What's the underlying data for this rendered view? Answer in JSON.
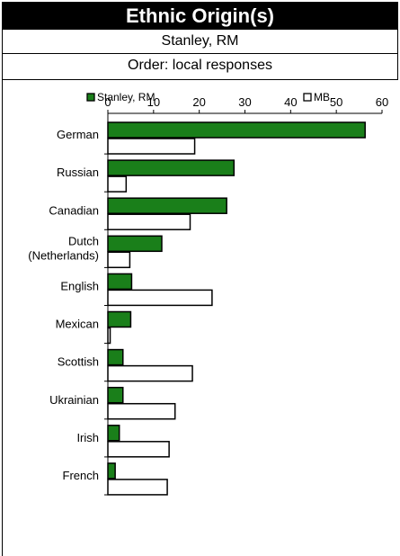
{
  "chart_data": {
    "type": "bar",
    "orientation": "horizontal",
    "title": "Ethnic Origin(s)",
    "subtitle_lines": [
      "Stanley, RM",
      "Order: local responses"
    ],
    "categories": [
      "German",
      "Russian",
      "Canadian",
      "Dutch\n(Netherlands)",
      "English",
      "Mexican",
      "Scottish",
      "Ukrainian",
      "Irish",
      "French"
    ],
    "series": [
      {
        "name": "Stanley, RM",
        "color": "#1a7f1a",
        "values": [
          56.3,
          27.6,
          26.0,
          11.8,
          5.2,
          5.0,
          3.3,
          3.3,
          2.5,
          1.6
        ]
      },
      {
        "name": "MB",
        "color": "#ffffff",
        "values": [
          19.0,
          4.0,
          18.0,
          4.8,
          22.8,
          0.5,
          18.5,
          14.7,
          13.4,
          13.0
        ]
      }
    ],
    "xlim": [
      0,
      60
    ],
    "xticks": [
      0,
      10,
      20,
      30,
      40,
      50,
      60
    ],
    "grid": false,
    "legend_position": "top"
  }
}
